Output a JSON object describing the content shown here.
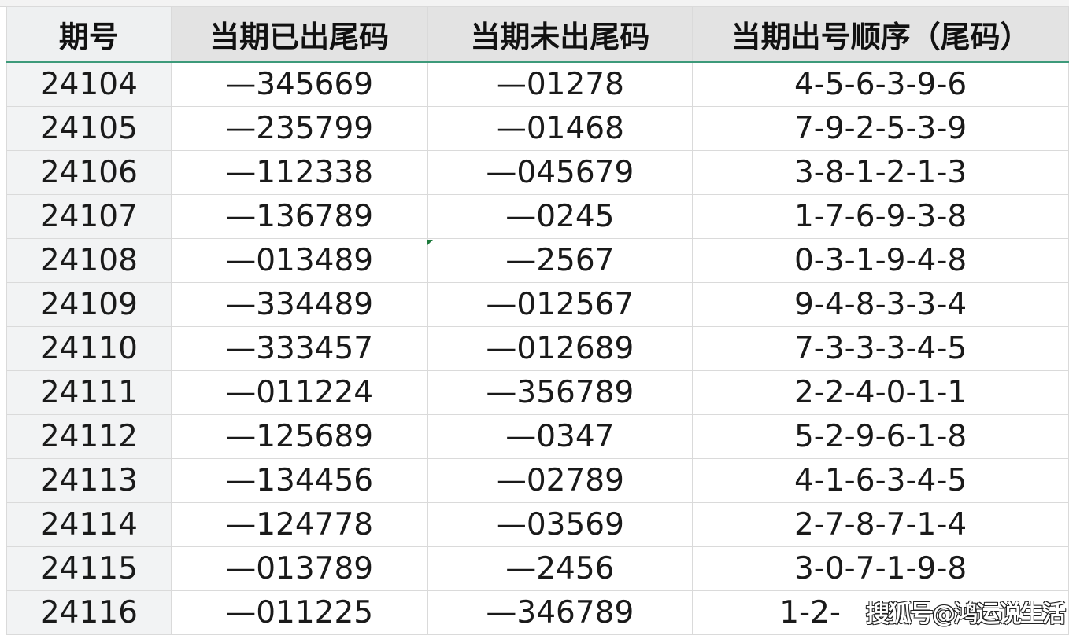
{
  "headers": [
    "期号",
    "当期已出尾码",
    "当期未出尾码",
    "当期出号顺序（尾码）"
  ],
  "rows": [
    [
      "24104",
      "—345669",
      "—01278",
      "4-5-6-3-9-6"
    ],
    [
      "24105",
      "—235799",
      "—01468",
      "7-9-2-5-3-9"
    ],
    [
      "24106",
      "—112338",
      "—045679",
      "3-8-1-2-1-3"
    ],
    [
      "24107",
      "—136789",
      "—0245",
      "1-7-6-9-3-8"
    ],
    [
      "24108",
      "—013489",
      "—2567",
      "0-3-1-9-4-8"
    ],
    [
      "24109",
      "—334489",
      "—012567",
      "9-4-8-3-3-4"
    ],
    [
      "24110",
      "—333457",
      "—012689",
      "7-3-3-3-4-5"
    ],
    [
      "24111",
      "—011224",
      "—356789",
      "2-2-4-0-1-1"
    ],
    [
      "24112",
      "—125689",
      "—0347",
      "5-2-9-6-1-8"
    ],
    [
      "24113",
      "—134456",
      "—02789",
      "4-1-6-3-4-5"
    ],
    [
      "24114",
      "—124778",
      "—03569",
      "2-7-8-7-1-4"
    ],
    [
      "24115",
      "—013789",
      "—2456",
      "3-0-7-1-9-8"
    ],
    [
      "24116",
      "—011225",
      "—346789",
      "1-2-"
    ]
  ],
  "watermark": "搜狐号@鸿运说生活"
}
